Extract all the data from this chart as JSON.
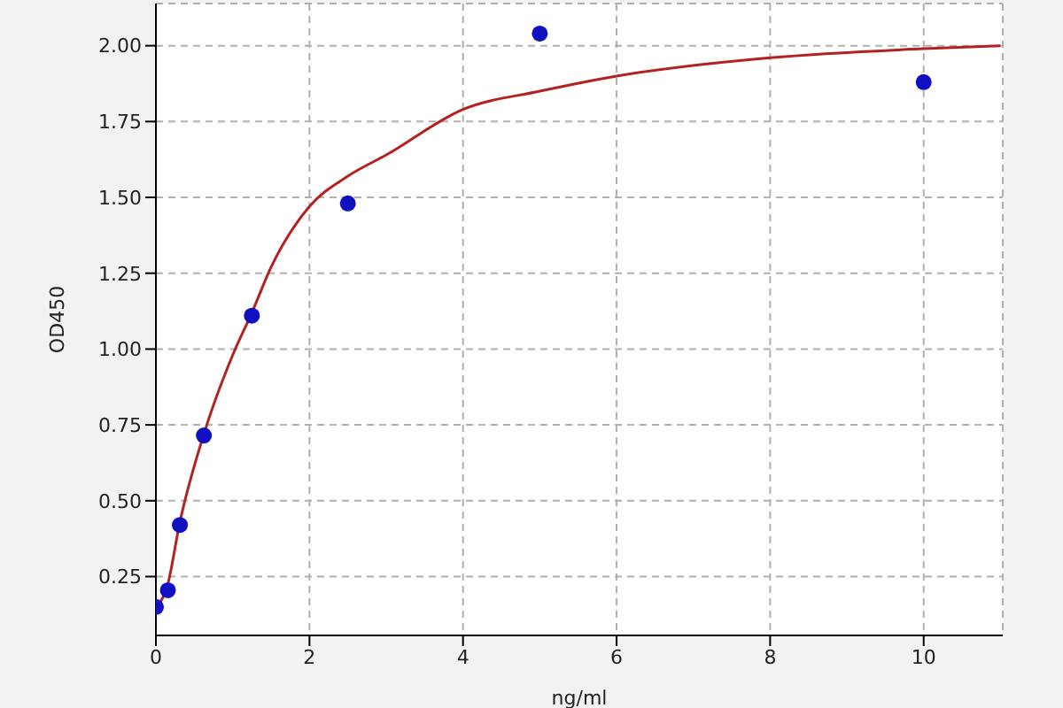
{
  "chart_data": {
    "type": "scatter",
    "xlabel": "ng/ml",
    "ylabel": "OD450",
    "xlim": [
      0,
      11.03
    ],
    "ylim": [
      0.056,
      2.139
    ],
    "xticks": [
      0,
      2,
      4,
      6,
      8,
      10
    ],
    "yticks": [
      {
        "value": 0.25,
        "label": "0.25"
      },
      {
        "value": 0.5,
        "label": "0.50"
      },
      {
        "value": 0.75,
        "label": "0.75"
      },
      {
        "value": 1,
        "label": "1.00"
      },
      {
        "value": 1.25,
        "label": "1.25"
      },
      {
        "value": 1.5,
        "label": "1.50"
      },
      {
        "value": 1.75,
        "label": "1.75"
      },
      {
        "value": 2,
        "label": "2.00"
      }
    ],
    "grid": true,
    "series": [
      {
        "type": "line",
        "color": "#b22222",
        "line_style": "solid",
        "marker": "none",
        "x": [
          0,
          0.15,
          0.3125,
          0.625,
          1,
          1.25,
          1.5,
          2,
          2.5,
          3,
          4,
          5,
          6,
          8,
          10,
          11
        ],
        "values": [
          0.15,
          0.22,
          0.43,
          0.72,
          0.98,
          1.12,
          1.27,
          1.47,
          1.57,
          1.64,
          1.79,
          1.85,
          1.9,
          1.96,
          1.99,
          2.0
        ]
      },
      {
        "color": "#1010c0",
        "marker": "circle",
        "x": [
          0,
          0.156,
          0.3125,
          0.625,
          1.25,
          2.5,
          5,
          10
        ],
        "values": [
          0.15,
          0.205,
          0.42,
          0.715,
          1.11,
          1.48,
          2.04,
          1.88
        ]
      }
    ]
  }
}
